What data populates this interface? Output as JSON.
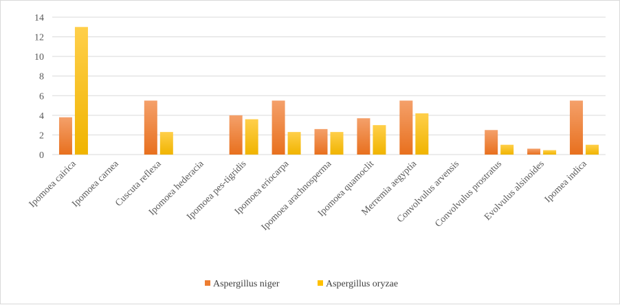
{
  "chart_data": {
    "type": "bar",
    "title": "",
    "xlabel": "",
    "ylabel": "",
    "ylim": [
      0,
      14
    ],
    "yticks": [
      0,
      2,
      4,
      6,
      8,
      10,
      12,
      14
    ],
    "grid": true,
    "legend_position": "bottom",
    "categories": [
      "Ipomoea cairica",
      "Ipomoea  carnea",
      "Cuscuta reflexa",
      "Ipomoea hederacia",
      "Ipomoea pes-tigridis",
      "Ipomoea eriocarpa",
      "Ipomoea arachnosperma",
      "Ipomoea  quamoclit",
      "Merremia aegyptia",
      "Convolvulus arvensis",
      "Convolvulus prostratus",
      "Evolvulus alsinoides",
      "Ipomea indica"
    ],
    "series": [
      {
        "name": "Aspergillus niger",
        "color": "#ED7D31",
        "values": [
          3.8,
          0,
          5.5,
          0,
          4.0,
          5.5,
          2.6,
          3.7,
          5.5,
          0,
          2.5,
          0.6,
          5.5
        ]
      },
      {
        "name": "Aspergillus oryzae",
        "color": "#FFC000",
        "values": [
          13.0,
          0,
          2.3,
          0,
          3.6,
          2.3,
          2.3,
          3.0,
          4.2,
          0,
          1.0,
          0.45,
          1.0
        ]
      }
    ]
  }
}
